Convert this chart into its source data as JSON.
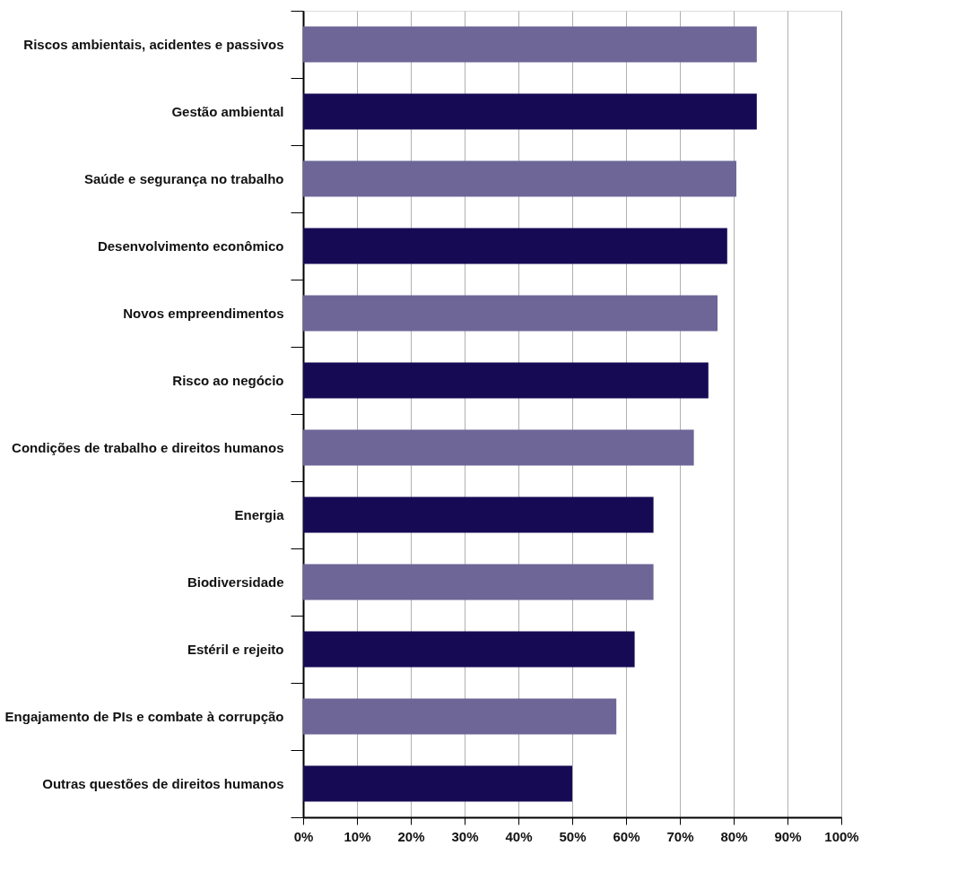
{
  "chart_data": {
    "type": "bar",
    "orientation": "horizontal",
    "categories": [
      "Riscos ambientais, acidentes e passivos",
      "Gestão ambiental",
      "Saúde e segurança no trabalho",
      "Desenvolvimento econômico",
      "Novos empreendimentos",
      "Risco ao negócio",
      "Condições de trabalho e direitos humanos",
      "Energia",
      "Biodiversidade",
      "Estéril e rejeito",
      "Engajamento de PIs e combate à corrupção",
      "Outras questões de direitos humanos"
    ],
    "values": [
      84.3,
      84.3,
      80.5,
      78.8,
      77.0,
      75.3,
      72.6,
      65.1,
      65.1,
      61.6,
      58.2,
      50.0
    ],
    "colors": [
      "#6d6697",
      "#170a55",
      "#6d6697",
      "#170a55",
      "#6d6697",
      "#170a55",
      "#6d6697",
      "#170a55",
      "#6d6697",
      "#170a55",
      "#6d6697",
      "#170a55"
    ],
    "xlim": [
      0,
      100
    ],
    "xticks": [
      {
        "value": 0,
        "label": "0%"
      },
      {
        "value": 10,
        "label": "10%"
      },
      {
        "value": 20,
        "label": "20%"
      },
      {
        "value": 30,
        "label": "30%"
      },
      {
        "value": 40,
        "label": "40%"
      },
      {
        "value": 50,
        "label": "50%"
      },
      {
        "value": 60,
        "label": "60%"
      },
      {
        "value": 70,
        "label": "70%"
      },
      {
        "value": 80,
        "label": "80%"
      },
      {
        "value": 90,
        "label": "90%"
      },
      {
        "value": 100,
        "label": "100%"
      }
    ],
    "grid": "x"
  }
}
